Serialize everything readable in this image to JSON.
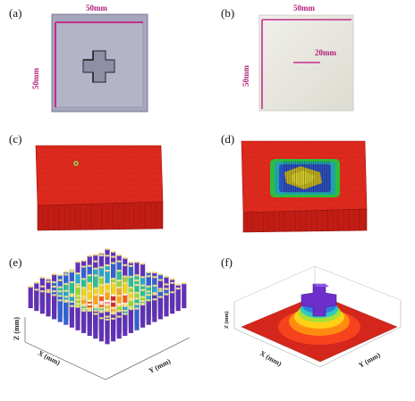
{
  "panels": {
    "a": {
      "label": "(a)",
      "dim_top": "50mm",
      "dim_side": "50mm"
    },
    "b": {
      "label": "(b)",
      "dim_top": "50mm",
      "dim_side": "50mm",
      "dim_inner": "20mm"
    },
    "c": {
      "label": "(c)"
    },
    "d": {
      "label": "(d)"
    },
    "e": {
      "label": "(e)",
      "axis_x": "X (mm)",
      "axis_y": "Y (mm)",
      "axis_z": "Z (mm)"
    },
    "f": {
      "label": "(f)",
      "axis_x": "X (mm)",
      "axis_y": "Y (mm)",
      "axis_z": "Z (mm)"
    }
  },
  "colors": {
    "plate_gray": "#a9a9c0",
    "plate_edge": "#8c8ca3",
    "dimension_magenta": "#b0207a",
    "printed_plate": "#e6e6dc",
    "mesh_red": "#e0261b"
  }
}
